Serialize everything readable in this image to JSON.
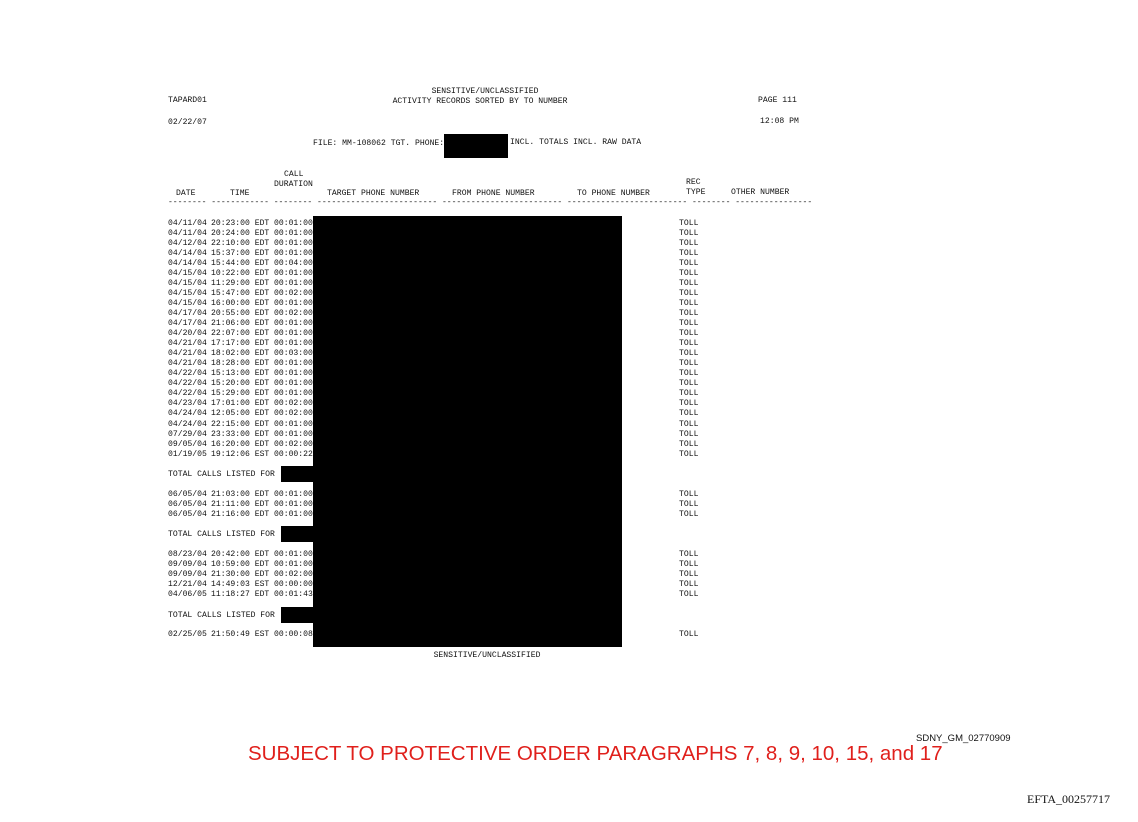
{
  "header": {
    "report_id": "TAPARD01",
    "classification": "SENSITIVE/UNCLASSIFIED",
    "report_title": "ACTIVITY RECORDS SORTED BY TO NUMBER",
    "page": "PAGE 111",
    "date": "02/22/07",
    "time": "12:08 PM",
    "file_label": "FILE: MM-108062 TGT. PHONE:",
    "options": "INCL. TOTALS INCL. RAW DATA"
  },
  "columns": {
    "date": "DATE",
    "time": "TIME",
    "call": "CALL",
    "duration": "DURATION",
    "target": "TARGET PHONE NUMBER",
    "from": "FROM PHONE NUMBER",
    "to": "TO PHONE NUMBER",
    "rec": "REC",
    "type": "TYPE",
    "other": "OTHER NUMBER",
    "dashes": "-------- ------------ -------- ------------------------- ------------------------- ------------------------- -------- ----------------"
  },
  "total_label": "TOTAL CALLS LISTED FOR",
  "groups": [
    {
      "records": [
        {
          "date": "04/11/04",
          "time": "20:23:00 EDT",
          "duration": "00:01:00",
          "rec_type": "TOLL"
        },
        {
          "date": "04/11/04",
          "time": "20:24:00 EDT",
          "duration": "00:01:00",
          "rec_type": "TOLL"
        },
        {
          "date": "04/12/04",
          "time": "22:10:00 EDT",
          "duration": "00:01:00",
          "rec_type": "TOLL"
        },
        {
          "date": "04/14/04",
          "time": "15:37:00 EDT",
          "duration": "00:01:00",
          "rec_type": "TOLL"
        },
        {
          "date": "04/14/04",
          "time": "15:44:00 EDT",
          "duration": "00:04:00",
          "rec_type": "TOLL"
        },
        {
          "date": "04/15/04",
          "time": "10:22:00 EDT",
          "duration": "00:01:00",
          "rec_type": "TOLL"
        },
        {
          "date": "04/15/04",
          "time": "11:29:00 EDT",
          "duration": "00:01:00",
          "rec_type": "TOLL"
        },
        {
          "date": "04/15/04",
          "time": "15:47:00 EDT",
          "duration": "00:02:00",
          "rec_type": "TOLL"
        },
        {
          "date": "04/15/04",
          "time": "16:00:00 EDT",
          "duration": "00:01:00",
          "rec_type": "TOLL"
        },
        {
          "date": "04/17/04",
          "time": "20:55:00 EDT",
          "duration": "00:02:00",
          "rec_type": "TOLL"
        },
        {
          "date": "04/17/04",
          "time": "21:06:00 EDT",
          "duration": "00:01:00",
          "rec_type": "TOLL"
        },
        {
          "date": "04/20/04",
          "time": "22:07:00 EDT",
          "duration": "00:01:00",
          "rec_type": "TOLL"
        },
        {
          "date": "04/21/04",
          "time": "17:17:00 EDT",
          "duration": "00:01:00",
          "rec_type": "TOLL"
        },
        {
          "date": "04/21/04",
          "time": "18:02:00 EDT",
          "duration": "00:03:00",
          "rec_type": "TOLL"
        },
        {
          "date": "04/21/04",
          "time": "18:28:00 EDT",
          "duration": "00:01:00",
          "rec_type": "TOLL"
        },
        {
          "date": "04/22/04",
          "time": "15:13:00 EDT",
          "duration": "00:01:00",
          "rec_type": "TOLL"
        },
        {
          "date": "04/22/04",
          "time": "15:20:00 EDT",
          "duration": "00:01:00",
          "rec_type": "TOLL"
        },
        {
          "date": "04/22/04",
          "time": "15:29:00 EDT",
          "duration": "00:01:00",
          "rec_type": "TOLL"
        },
        {
          "date": "04/23/04",
          "time": "17:01:00 EDT",
          "duration": "00:02:00",
          "rec_type": "TOLL"
        },
        {
          "date": "04/24/04",
          "time": "12:05:00 EDT",
          "duration": "00:02:00",
          "rec_type": "TOLL"
        },
        {
          "date": "04/24/04",
          "time": "22:15:00 EDT",
          "duration": "00:01:00",
          "rec_type": "TOLL"
        },
        {
          "date": "07/29/04",
          "time": "23:33:00 EDT",
          "duration": "00:01:00",
          "rec_type": "TOLL"
        },
        {
          "date": "09/05/04",
          "time": "16:20:00 EDT",
          "duration": "00:02:00",
          "rec_type": "TOLL"
        },
        {
          "date": "01/19/05",
          "time": "19:12:06 EST",
          "duration": "00:00:22",
          "rec_type": "TOLL"
        }
      ],
      "has_total": true
    },
    {
      "records": [
        {
          "date": "06/05/04",
          "time": "21:03:00 EDT",
          "duration": "00:01:00",
          "rec_type": "TOLL"
        },
        {
          "date": "06/05/04",
          "time": "21:11:00 EDT",
          "duration": "00:01:00",
          "rec_type": "TOLL"
        },
        {
          "date": "06/05/04",
          "time": "21:16:00 EDT",
          "duration": "00:01:00",
          "rec_type": "TOLL"
        }
      ],
      "has_total": true
    },
    {
      "records": [
        {
          "date": "08/23/04",
          "time": "20:42:00 EDT",
          "duration": "00:01:00",
          "rec_type": "TOLL"
        },
        {
          "date": "09/09/04",
          "time": "10:59:00 EDT",
          "duration": "00:01:00",
          "rec_type": "TOLL"
        },
        {
          "date": "09/09/04",
          "time": "21:30:00 EDT",
          "duration": "00:02:00",
          "rec_type": "TOLL"
        },
        {
          "date": "12/21/04",
          "time": "14:49:03 EST",
          "duration": "00:00:00",
          "rec_type": "TOLL"
        },
        {
          "date": "04/06/05",
          "time": "11:18:27 EDT",
          "duration": "00:01:43",
          "rec_type": "TOLL"
        }
      ],
      "has_total": true
    },
    {
      "records": [
        {
          "date": "02/25/05",
          "time": "21:50:49 EST",
          "duration": "00:00:08",
          "rec_type": "TOLL"
        }
      ],
      "has_total": false
    }
  ],
  "footer": {
    "classification": "SENSITIVE/UNCLASSIFIED",
    "protective_order": "SUBJECT TO PROTECTIVE ORDER PARAGRAPHS 7, 8, 9, 10, 15, and 17",
    "bates": "SDNY_GM_02770909",
    "efta": "EFTA_00257717"
  }
}
